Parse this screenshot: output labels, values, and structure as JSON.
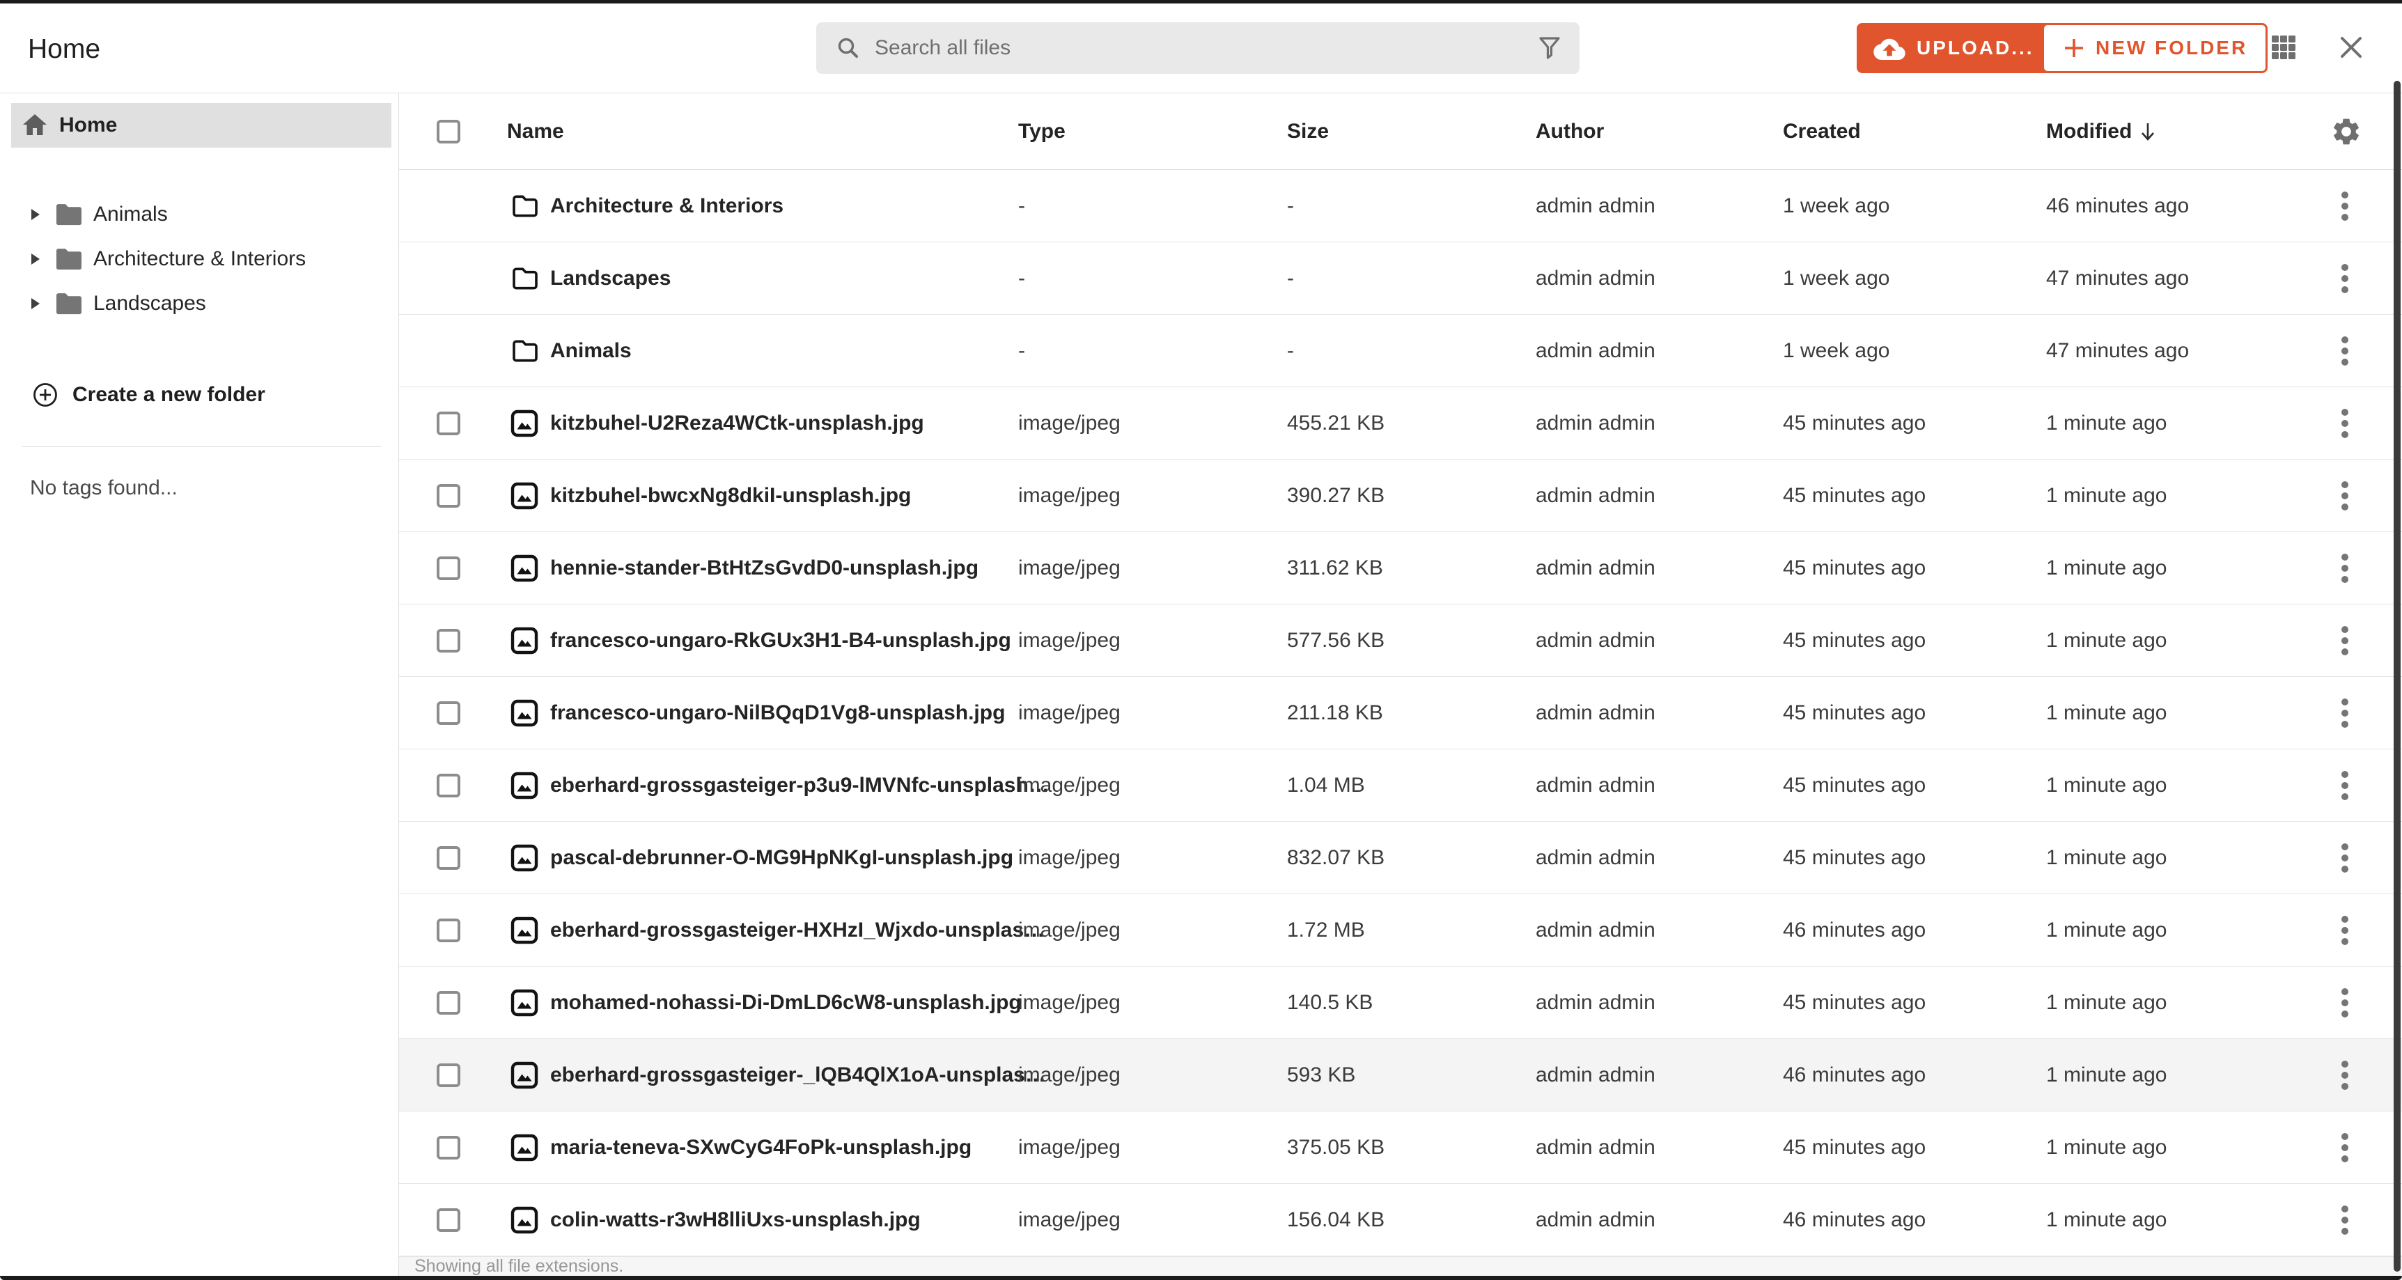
{
  "topbar": {
    "title": "Home",
    "search": {
      "placeholder": "Search all files"
    },
    "upload_button": "UPLOAD...",
    "new_folder_button": "NEW FOLDER"
  },
  "sidebar": {
    "home_label": "Home",
    "folders": [
      "Animals",
      "Architecture & Interiors",
      "Landscapes"
    ],
    "create_folder_label": "Create a new folder",
    "no_tags_text": "No tags found..."
  },
  "table": {
    "columns": {
      "name": "Name",
      "type": "Type",
      "size": "Size",
      "author": "Author",
      "created": "Created",
      "modified": "Modified"
    },
    "sort": {
      "column": "Modified",
      "direction": "desc"
    },
    "rows": [
      {
        "kind": "folder",
        "name": "Architecture & Interiors",
        "type": "-",
        "size": "-",
        "author": "admin admin",
        "created": "1 week ago",
        "modified": "46 minutes ago"
      },
      {
        "kind": "folder",
        "name": "Landscapes",
        "type": "-",
        "size": "-",
        "author": "admin admin",
        "created": "1 week ago",
        "modified": "47 minutes ago"
      },
      {
        "kind": "folder",
        "name": "Animals",
        "type": "-",
        "size": "-",
        "author": "admin admin",
        "created": "1 week ago",
        "modified": "47 minutes ago"
      },
      {
        "kind": "file",
        "name": "kitzbuhel-U2Reza4WCtk-unsplash.jpg",
        "type": "image/jpeg",
        "size": "455.21 KB",
        "author": "admin admin",
        "created": "45 minutes ago",
        "modified": "1 minute ago"
      },
      {
        "kind": "file",
        "name": "kitzbuhel-bwcxNg8dkiI-unsplash.jpg",
        "type": "image/jpeg",
        "size": "390.27 KB",
        "author": "admin admin",
        "created": "45 minutes ago",
        "modified": "1 minute ago"
      },
      {
        "kind": "file",
        "name": "hennie-stander-BtHtZsGvdD0-unsplash.jpg",
        "type": "image/jpeg",
        "size": "311.62 KB",
        "author": "admin admin",
        "created": "45 minutes ago",
        "modified": "1 minute ago"
      },
      {
        "kind": "file",
        "name": "francesco-ungaro-RkGUx3H1-B4-unsplash.jpg",
        "type": "image/jpeg",
        "size": "577.56 KB",
        "author": "admin admin",
        "created": "45 minutes ago",
        "modified": "1 minute ago"
      },
      {
        "kind": "file",
        "name": "francesco-ungaro-NilBQqD1Vg8-unsplash.jpg",
        "type": "image/jpeg",
        "size": "211.18 KB",
        "author": "admin admin",
        "created": "45 minutes ago",
        "modified": "1 minute ago"
      },
      {
        "kind": "file",
        "name": "eberhard-grossgasteiger-p3u9-lMVNfc-unsplash…",
        "type": "image/jpeg",
        "size": "1.04 MB",
        "author": "admin admin",
        "created": "45 minutes ago",
        "modified": "1 minute ago"
      },
      {
        "kind": "file",
        "name": "pascal-debrunner-O-MG9HpNKgI-unsplash.jpg",
        "type": "image/jpeg",
        "size": "832.07 KB",
        "author": "admin admin",
        "created": "45 minutes ago",
        "modified": "1 minute ago"
      },
      {
        "kind": "file",
        "name": "eberhard-grossgasteiger-HXHzI_Wjxdo-unsplas…",
        "type": "image/jpeg",
        "size": "1.72 MB",
        "author": "admin admin",
        "created": "46 minutes ago",
        "modified": "1 minute ago"
      },
      {
        "kind": "file",
        "name": "mohamed-nohassi-Di-DmLD6cW8-unsplash.jpg",
        "type": "image/jpeg",
        "size": "140.5 KB",
        "author": "admin admin",
        "created": "45 minutes ago",
        "modified": "1 minute ago"
      },
      {
        "kind": "file",
        "name": "eberhard-grossgasteiger-_lQB4QlX1oA-unsplas…",
        "type": "image/jpeg",
        "size": "593 KB",
        "author": "admin admin",
        "created": "46 minutes ago",
        "modified": "1 minute ago",
        "highlighted": true
      },
      {
        "kind": "file",
        "name": "maria-teneva-SXwCyG4FoPk-unsplash.jpg",
        "type": "image/jpeg",
        "size": "375.05 KB",
        "author": "admin admin",
        "created": "45 minutes ago",
        "modified": "1 minute ago"
      },
      {
        "kind": "file",
        "name": "colin-watts-r3wH8lliUxs-unsplash.jpg",
        "type": "image/jpeg",
        "size": "156.04 KB",
        "author": "admin admin",
        "created": "46 minutes ago",
        "modified": "1 minute ago"
      }
    ]
  },
  "statusbar": {
    "text": "Showing all file extensions."
  },
  "colors": {
    "accent_orange": "#e0552e",
    "sidebar_selected_bg": "#e0e0e0",
    "highlighted_row_bg": "#f4f4f4"
  }
}
